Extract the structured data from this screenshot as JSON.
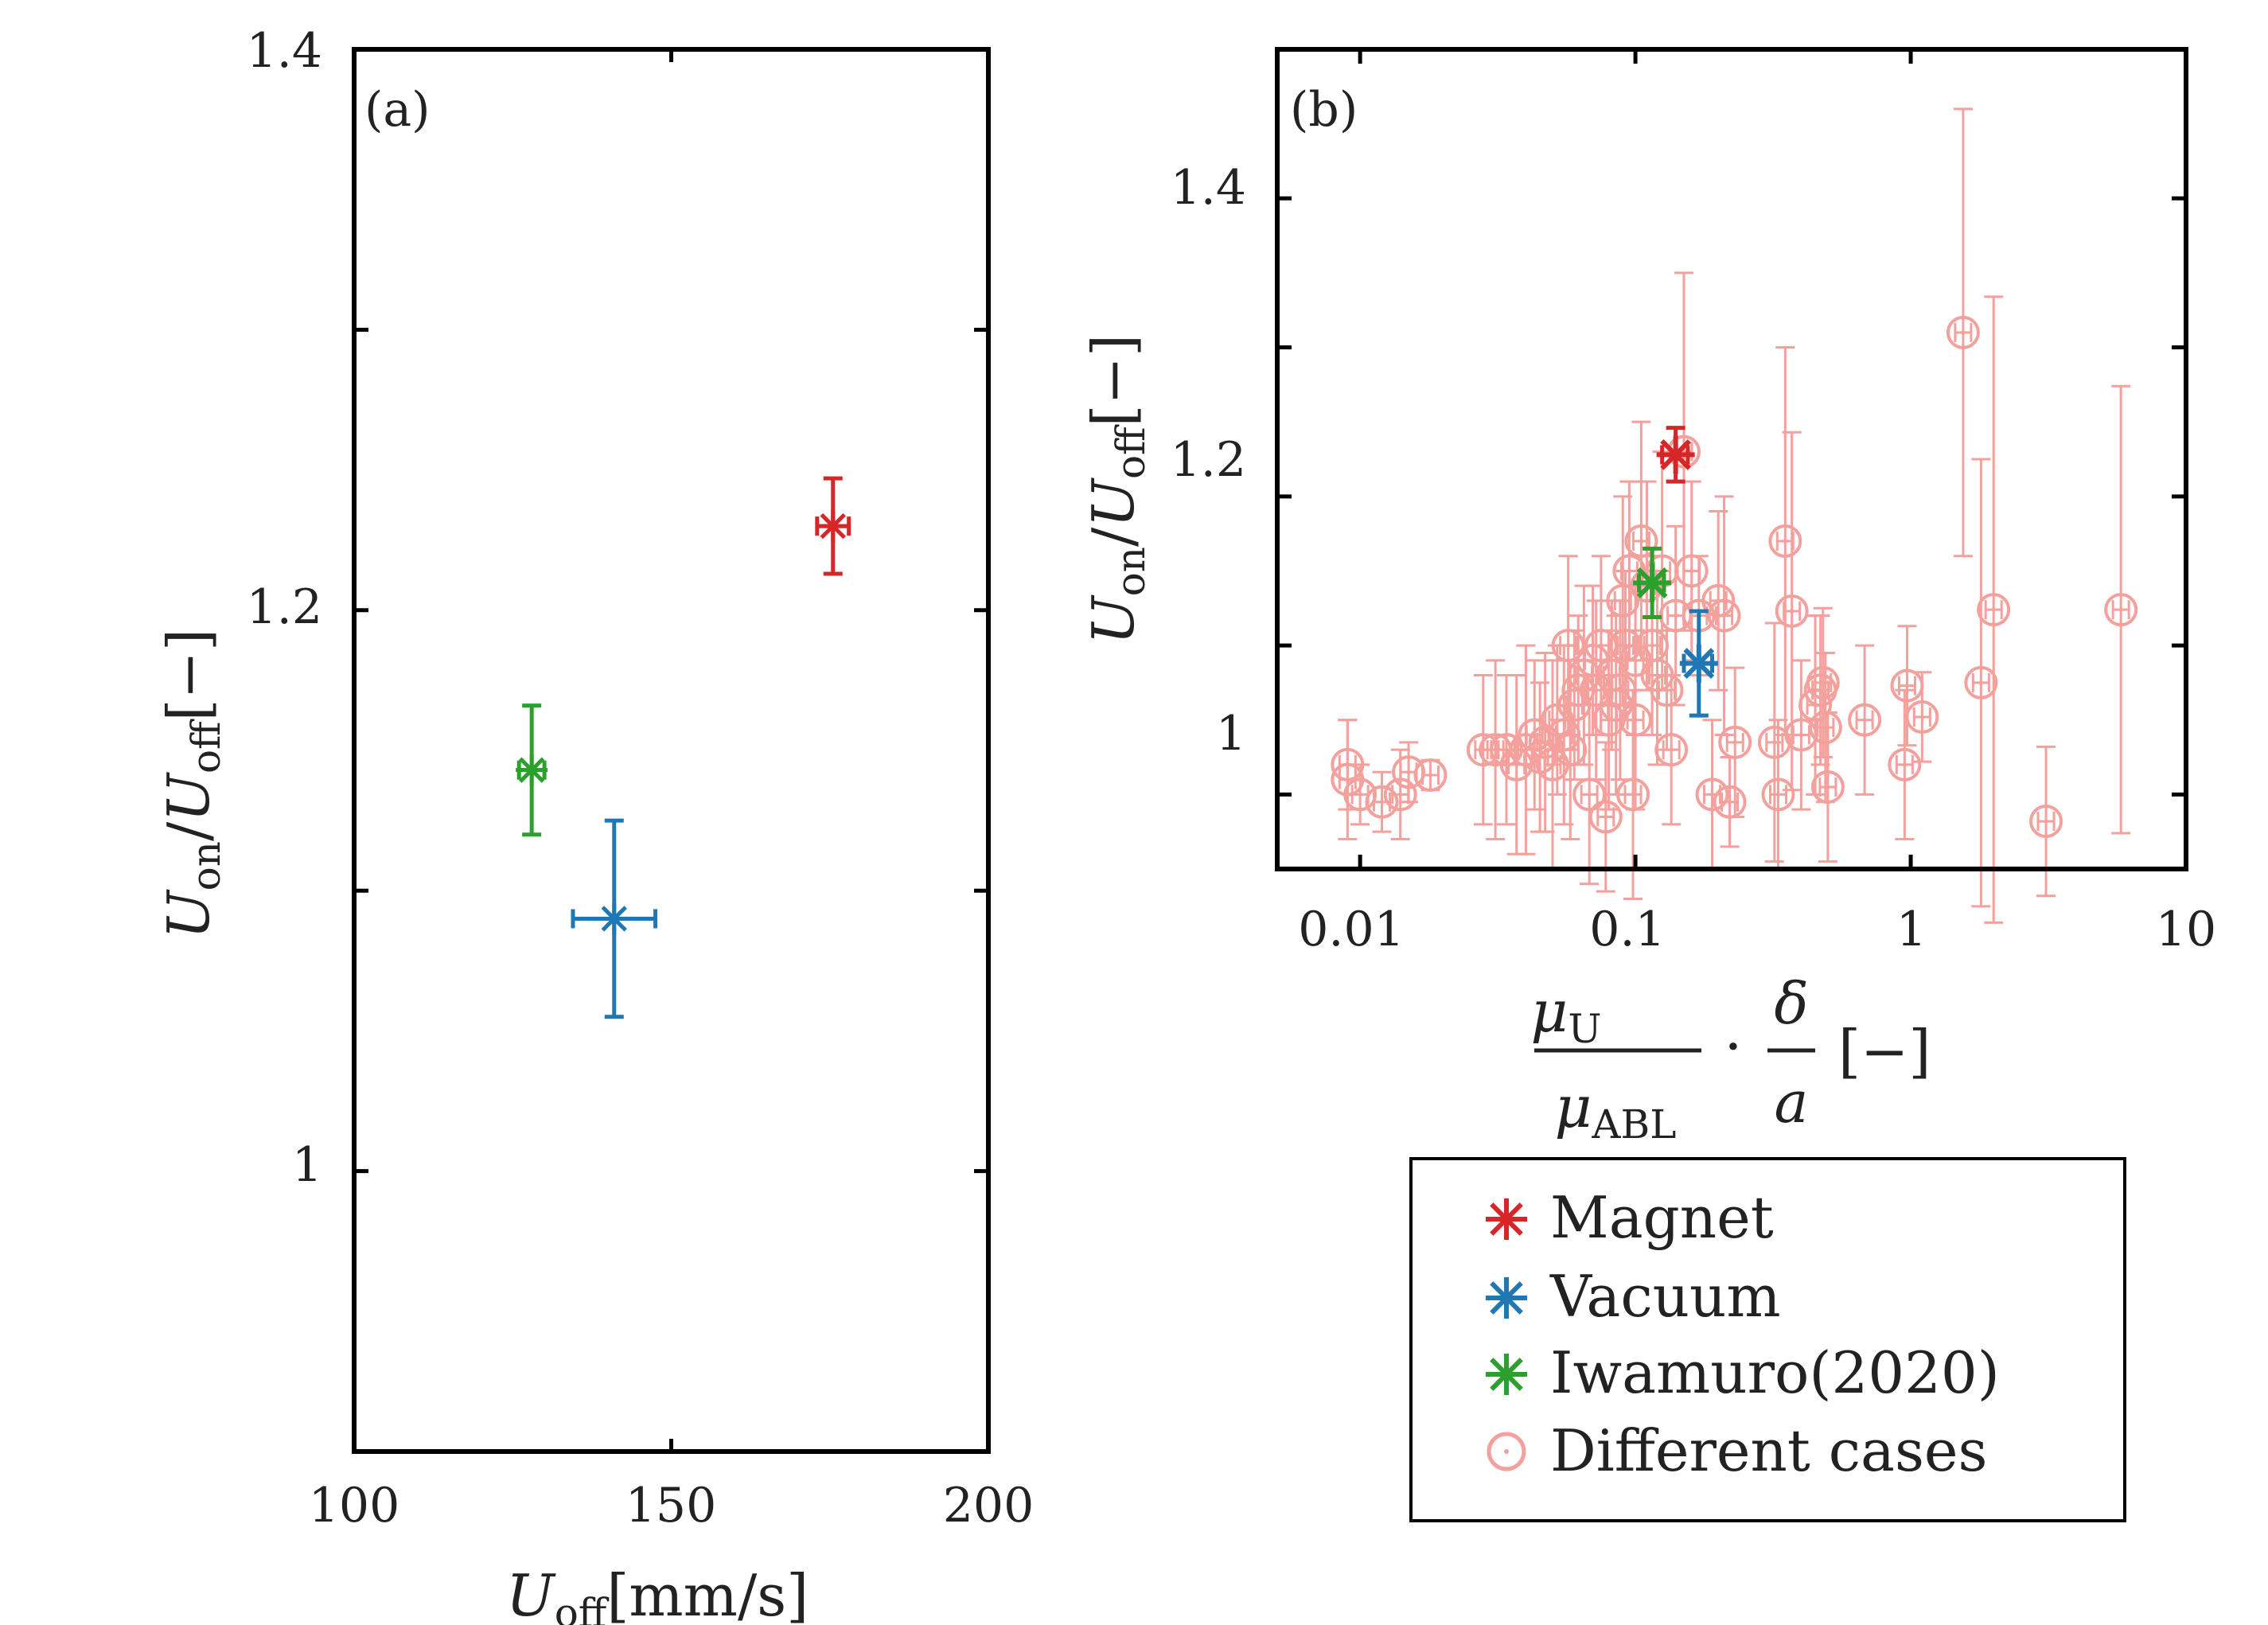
{
  "colors": {
    "magnet": "#d62728",
    "vacuum": "#1f77b4",
    "iwamuro": "#2ca02c",
    "cases": "#f4a09c",
    "axis": "#000000"
  },
  "panel_a": {
    "tag": "(a)",
    "ylabel_main": "U",
    "ylabel_sub1": "on",
    "ylabel_slash": "/",
    "ylabel_main2": "U",
    "ylabel_sub2": "off",
    "ylabel_unit": "[−]",
    "xlabel_main": "U",
    "xlabel_sub": "off",
    "xlabel_unit": "[mm/s]",
    "xticks": [
      "100",
      "150",
      "200"
    ],
    "yticks": [
      "1",
      "1.2",
      "1.4"
    ]
  },
  "panel_b": {
    "tag": "(b)",
    "ylabel_main": "U",
    "ylabel_sub1": "on",
    "ylabel_slash": "/",
    "ylabel_main2": "U",
    "ylabel_sub2": "off",
    "ylabel_unit": "[−]",
    "xlabel_num": "μ",
    "xlabel_num_sub": "U",
    "xlabel_den": "μ",
    "xlabel_den_sub": "ABL",
    "xlabel_dot": "·",
    "xlabel_num2": "δ",
    "xlabel_den2": "a",
    "xlabel_unit": "[−]",
    "xticks": [
      "0.01",
      "0.1",
      "1",
      "10"
    ],
    "yticks": [
      "1",
      "1.2",
      "1.4"
    ]
  },
  "legend": {
    "magnet": "Magnet",
    "vacuum": "Vacuum",
    "iwamuro": "Iwamuro(2020)",
    "cases": "Different cases"
  },
  "chart_data": [
    {
      "type": "scatter",
      "panel": "a",
      "xlim": [
        100,
        200
      ],
      "ylim": [
        0.9,
        1.4
      ],
      "series": [
        {
          "name": "Magnet",
          "x": [
            175.5
          ],
          "y": [
            1.23
          ],
          "xerr": [
            2.5
          ],
          "yerr": [
            0.017
          ]
        },
        {
          "name": "Vacuum",
          "x": [
            141
          ],
          "y": [
            1.09
          ],
          "xerr": [
            6.5
          ],
          "yerr": [
            0.035
          ]
        },
        {
          "name": "Iwamuro(2020)",
          "x": [
            128
          ],
          "y": [
            1.143
          ],
          "xerr": [
            2
          ],
          "yerr": [
            0.023
          ]
        }
      ]
    },
    {
      "type": "scatter",
      "panel": "b",
      "xscale": "log",
      "xlim": [
        0.005,
        10
      ],
      "ylim": [
        0.95,
        1.5
      ],
      "series": [
        {
          "name": "Magnet",
          "x": [
            0.14
          ],
          "y": [
            1.228
          ],
          "xerr": [
            0.015
          ],
          "yerr": [
            0.018
          ]
        },
        {
          "name": "Vacuum",
          "x": [
            0.17
          ],
          "y": [
            1.088
          ],
          "xerr": [
            0.02
          ],
          "yerr": [
            0.035
          ]
        },
        {
          "name": "Iwamuro(2020)",
          "x": [
            0.115
          ],
          "y": [
            1.142
          ],
          "xerr": [
            0.012
          ],
          "yerr": [
            0.023
          ]
        },
        {
          "name": "Different cases",
          "x": [
            0.009,
            0.009,
            0.01,
            0.012,
            0.014,
            0.015,
            0.018,
            0.028,
            0.031,
            0.034,
            0.037,
            0.04,
            0.043,
            0.045,
            0.047,
            0.05,
            0.052,
            0.055,
            0.057,
            0.058,
            0.06,
            0.062,
            0.065,
            0.068,
            0.07,
            0.072,
            0.075,
            0.078,
            0.08,
            0.082,
            0.085,
            0.088,
            0.09,
            0.092,
            0.095,
            0.098,
            0.1,
            0.1,
            0.105,
            0.11,
            0.115,
            0.12,
            0.125,
            0.13,
            0.135,
            0.14,
            0.15,
            0.16,
            0.17,
            0.19,
            0.2,
            0.21,
            0.22,
            0.23,
            0.32,
            0.33,
            0.35,
            0.37,
            0.4,
            0.45,
            0.47,
            0.48,
            0.49,
            0.5,
            0.68,
            0.95,
            0.97,
            1.1,
            1.55,
            1.8,
            2.0,
            3.1,
            5.8
          ],
          "y": [
            1.01,
            1.02,
            1.0,
            0.995,
            1.0,
            1.015,
            1.013,
            1.03,
            1.03,
            1.03,
            1.02,
            1.03,
            1.04,
            1.025,
            1.035,
            1.02,
            1.05,
            1.04,
            1.1,
            1.03,
            1.06,
            1.07,
            1.08,
            1.0,
            1.09,
            1.07,
            1.1,
            0.985,
            1.05,
            1.08,
            1.06,
            1.07,
            1.13,
            1.1,
            1.15,
            1.0,
            1.05,
            1.09,
            1.17,
            1.14,
            1.1,
            1.08,
            1.15,
            1.07,
            1.03,
            1.12,
            1.23,
            1.15,
            1.12,
            1.0,
            1.13,
            1.12,
            0.995,
            1.035,
            1.035,
            1.0,
            1.17,
            1.123,
            1.04,
            1.06,
            1.07,
            1.075,
            1.045,
            1.005,
            1.05,
            1.02,
            1.073,
            1.052,
            1.31,
            1.075,
            1.124,
            0.982,
            1.124
          ],
          "yerr": [
            0.04,
            0.03,
            0.02,
            0.02,
            0.03,
            0.02,
            0.01,
            0.05,
            0.06,
            0.05,
            0.06,
            0.07,
            0.05,
            0.05,
            0.06,
            0.07,
            0.05,
            0.06,
            0.06,
            0.06,
            0.05,
            0.05,
            0.06,
            0.06,
            0.05,
            0.06,
            0.06,
            0.05,
            0.06,
            0.05,
            0.06,
            0.06,
            0.07,
            0.05,
            0.06,
            0.07,
            0.06,
            0.05,
            0.08,
            0.07,
            0.06,
            0.06,
            0.08,
            0.04,
            0.05,
            0.06,
            0.12,
            0.06,
            0.04,
            0.05,
            0.06,
            0.08,
            0.03,
            0.05,
            0.08,
            0.05,
            0.13,
            0.12,
            0.05,
            0.06,
            0.05,
            0.05,
            0.05,
            0.05,
            0.05,
            0.05,
            0.04,
            0.03,
            0.15,
            0.15,
            0.21,
            0.05,
            0.15
          ]
        }
      ]
    }
  ]
}
